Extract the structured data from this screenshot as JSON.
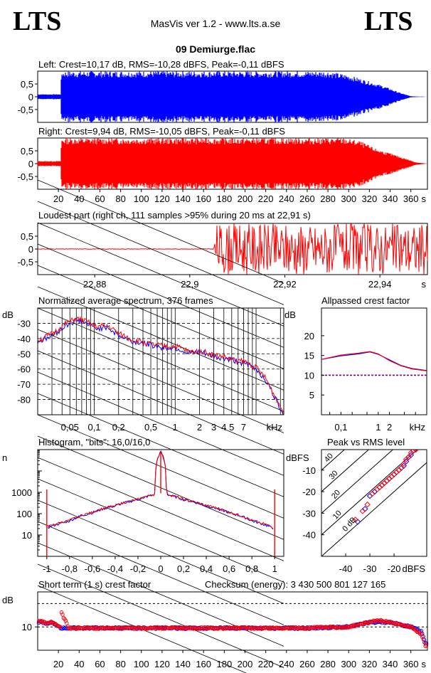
{
  "header": {
    "logo_left": "LTS",
    "logo_right": "LTS",
    "app_title": "MasVis ver 1.2 - www.lts.a.se",
    "file_title": "09 Demiurge.flac"
  },
  "colors": {
    "left_channel": "#0000ff",
    "right_channel": "#ff0000",
    "axis": "#000000"
  },
  "chart_data": [
    {
      "id": "left-waveform",
      "type": "area",
      "title": "Left: Crest=10,17 dB, RMS=-10,28 dBFS, Peak=-0,11 dBFS",
      "ytick_labels": [
        "0,5",
        "0",
        "-0,5"
      ],
      "yticks": [
        0.5,
        0,
        -0.5
      ],
      "xlim": [
        0,
        376
      ],
      "ylim": [
        -1,
        1
      ],
      "envelope": {
        "x": [
          0,
          22,
          23,
          280,
          300,
          320,
          335,
          350,
          360,
          376
        ],
        "peak": [
          0.1,
          0.1,
          1.0,
          1.0,
          0.85,
          0.6,
          0.4,
          0.15,
          0.02,
          0.0
        ]
      }
    },
    {
      "id": "right-waveform",
      "type": "area",
      "title": "Right: Crest=9,94 dB, RMS=-10,05 dBFS, Peak=-0,11 dBFS",
      "ytick_labels": [
        "0,5",
        "0",
        "-0,5"
      ],
      "yticks": [
        0.5,
        0,
        -0.5
      ],
      "xtick_labels": [
        "20",
        "40",
        "60",
        "80",
        "100",
        "120",
        "140",
        "160",
        "180",
        "200",
        "220",
        "240",
        "260",
        "280",
        "300",
        "320",
        "340",
        "360",
        "s"
      ],
      "xticks": [
        20,
        40,
        60,
        80,
        100,
        120,
        140,
        160,
        180,
        200,
        220,
        240,
        260,
        280,
        300,
        320,
        340,
        360
      ],
      "xlim": [
        0,
        376
      ],
      "ylim": [
        -1,
        1
      ],
      "envelope": {
        "x": [
          0,
          22,
          23,
          295,
          310,
          325,
          340,
          355,
          365,
          376
        ],
        "peak": [
          0.1,
          0.1,
          1.0,
          1.0,
          0.9,
          0.6,
          0.4,
          0.2,
          0.05,
          0.0
        ]
      }
    },
    {
      "id": "loudest-part",
      "type": "line",
      "title": "Loudest part (right ch, 111 samples >95% during 20 ms at 22,91 s)",
      "ytick_labels": [
        "0,5",
        "0",
        "-0,5"
      ],
      "yticks": [
        0.5,
        0,
        -0.5
      ],
      "xtick_labels": [
        "22,88",
        "22,9",
        "22,92",
        "22,94",
        "s"
      ],
      "xticks": [
        22.88,
        22.9,
        22.92,
        22.94
      ],
      "xlim": [
        22.868,
        22.95
      ],
      "ylim": [
        -1,
        1
      ],
      "series": [
        {
          "x": [
            22.868,
            22.905,
            22.9055,
            22.95
          ],
          "amplitude": [
            0.02,
            0.02,
            1.0,
            1.0
          ]
        }
      ]
    },
    {
      "id": "average-spectrum",
      "type": "line",
      "title": "Normalized average spectrum, 376 frames",
      "ylabel": "dB",
      "xlabel": "kHz",
      "ytick_labels": [
        "-30",
        "-40",
        "-50",
        "-60",
        "-70",
        "-80"
      ],
      "yticks": [
        -30,
        -40,
        -50,
        -60,
        -70,
        -80
      ],
      "xtick_labels": [
        "0,05",
        "0,1",
        "0,2",
        "0,5",
        "1",
        "2",
        "3",
        "4",
        "5",
        "7",
        "kHz"
      ],
      "xticks": [
        0.05,
        0.1,
        0.2,
        0.5,
        1,
        2,
        3,
        4,
        5,
        7
      ],
      "xlim": [
        0.02,
        22
      ],
      "ylim": [
        -90,
        -20
      ],
      "xscale": "log",
      "series": [
        {
          "color": "#0000ff",
          "x": [
            0.02,
            0.03,
            0.045,
            0.06,
            0.08,
            0.1,
            0.15,
            0.2,
            0.3,
            0.5,
            0.7,
            1,
            1.5,
            2,
            3,
            4,
            5,
            7,
            10,
            13,
            16,
            20,
            22
          ],
          "y": [
            -42,
            -38,
            -31,
            -28,
            -30,
            -33,
            -33,
            -38,
            -42,
            -44,
            -46,
            -46,
            -50,
            -49,
            -52,
            -53,
            -54,
            -56,
            -60,
            -67,
            -76,
            -86,
            -89
          ]
        },
        {
          "color": "#ff0000",
          "x": [
            0.02,
            0.03,
            0.045,
            0.06,
            0.08,
            0.1,
            0.15,
            0.2,
            0.3,
            0.5,
            0.7,
            1,
            1.5,
            2,
            3,
            4,
            5,
            7,
            10,
            13,
            16,
            20,
            22
          ],
          "y": [
            -41,
            -37,
            -30,
            -27,
            -29,
            -32,
            -32,
            -37,
            -41,
            -44,
            -45,
            -45,
            -49,
            -48,
            -51,
            -52,
            -54,
            -55,
            -59,
            -66,
            -75,
            -85,
            -88
          ]
        }
      ]
    },
    {
      "id": "allpassed-crest",
      "type": "line",
      "title": "Allpassed crest factor",
      "ylabel": "dB",
      "xlabel": "kHz",
      "ytick_labels": [
        "20",
        "15",
        "10",
        "5"
      ],
      "yticks": [
        20,
        15,
        10,
        5
      ],
      "xtick_labels": [
        "0,1",
        "1",
        "2",
        "kHz"
      ],
      "xticks": [
        0.1,
        1,
        2
      ],
      "xlim": [
        0.03,
        20
      ],
      "ylim": [
        0,
        27
      ],
      "xscale": "log",
      "reference_dB": 10,
      "series": [
        {
          "color": "#0000ff",
          "x": [
            0.03,
            0.1,
            0.3,
            0.6,
            1,
            2,
            4,
            8,
            20
          ],
          "y": [
            14.0,
            14.9,
            15.4,
            15.9,
            15.3,
            13.9,
            12.5,
            11.7,
            11.2
          ]
        },
        {
          "color": "#ff0000",
          "x": [
            0.03,
            0.1,
            0.3,
            0.6,
            1,
            2,
            4,
            8,
            20
          ],
          "y": [
            14.0,
            15.1,
            15.6,
            16.0,
            15.4,
            13.7,
            12.4,
            11.6,
            11.1
          ]
        }
      ]
    },
    {
      "id": "histogram",
      "type": "line",
      "title": "Histogram, \"bits\": 16,0/16,0",
      "ylabel": "n",
      "ytick_labels": [
        "1000",
        "100",
        "10"
      ],
      "yticks": [
        1000,
        100,
        10
      ],
      "xtick_labels": [
        "-1",
        "-0,8",
        "-0,6",
        "-0,4",
        "-0,2",
        "0",
        "0,2",
        "0,4",
        "0,6",
        "0,8",
        "1"
      ],
      "xticks": [
        -1,
        -0.8,
        -0.6,
        -0.4,
        -0.2,
        0,
        0.2,
        0.4,
        0.6,
        0.8,
        1
      ],
      "xlim": [
        -1.08,
        1.08
      ],
      "ylim": [
        1,
        100000
      ],
      "yscale": "log",
      "series": [
        {
          "color": "#0000ff",
          "x": [
            -1,
            -0.99,
            -0.8,
            -0.6,
            -0.4,
            -0.2,
            -0.05,
            0,
            0.05,
            0.2,
            0.4,
            0.6,
            0.8,
            0.99,
            1
          ],
          "y": [
            1000,
            22,
            45,
            110,
            230,
            450,
            800,
            80000,
            800,
            450,
            230,
            110,
            45,
            20,
            1000
          ]
        },
        {
          "color": "#ff0000",
          "x": [
            -1,
            -0.99,
            -0.8,
            -0.6,
            -0.4,
            -0.2,
            -0.05,
            0,
            0.05,
            0.2,
            0.4,
            0.6,
            0.8,
            0.99,
            1
          ],
          "y": [
            1000,
            24,
            48,
            115,
            240,
            460,
            820,
            80000,
            820,
            460,
            240,
            115,
            48,
            22,
            1000
          ]
        }
      ]
    },
    {
      "id": "peak-vs-rms",
      "type": "scatter",
      "title": "Peak vs RMS level",
      "xlabel": "dBFS",
      "ylabel": "dBFS",
      "ytick_labels": [
        "-10",
        "-20",
        "-30",
        "-40"
      ],
      "yticks": [
        -10,
        -20,
        -30,
        -40
      ],
      "xtick_labels": [
        "-40",
        "-30",
        "-20",
        "dBFS"
      ],
      "xticks": [
        -40,
        -30,
        -20
      ],
      "xlim": [
        -50,
        -6.5
      ],
      "ylim": [
        -50,
        -0.5
      ],
      "crest_lines": [
        {
          "label": "40",
          "offset": 40
        },
        {
          "label": "30",
          "offset": 30
        },
        {
          "label": "20",
          "offset": 20
        },
        {
          "label": "10",
          "offset": 10
        },
        {
          "label": "0 dB",
          "offset": 0
        }
      ],
      "series": [
        {
          "color": "#0000ff",
          "rms": [
            -35,
            -32,
            -30,
            -28,
            -26,
            -25,
            -24,
            -23,
            -22,
            -21,
            -20,
            -19,
            -18,
            -17,
            -16,
            -15,
            -14,
            -13,
            -12,
            -11
          ],
          "peak": [
            -34,
            -28,
            -22,
            -20,
            -18,
            -17,
            -16,
            -15,
            -14,
            -13,
            -12,
            -11,
            -10,
            -9,
            -8,
            -6,
            -4,
            -3,
            -1,
            -0.5
          ]
        },
        {
          "color": "#ff0000",
          "rms": [
            -36,
            -33,
            -31,
            -29,
            -27,
            -26,
            -25,
            -24,
            -23,
            -22,
            -21,
            -20,
            -19,
            -18,
            -17,
            -16,
            -15,
            -14,
            -13,
            -12,
            -11
          ],
          "peak": [
            -33,
            -29,
            -26,
            -21,
            -19,
            -18,
            -17,
            -16,
            -15,
            -14,
            -13,
            -12,
            -11,
            -10,
            -9,
            -7,
            -5,
            -4,
            -2,
            -1,
            -0.5
          ]
        }
      ]
    },
    {
      "id": "short-term-crest",
      "type": "scatter",
      "title": "Short term (1 s) crest factor",
      "ylabel": "dB",
      "ytick_labels": [
        "10"
      ],
      "yticks": [
        10
      ],
      "xtick_labels": [
        "20",
        "40",
        "60",
        "80",
        "100",
        "120",
        "140",
        "160",
        "180",
        "200",
        "220",
        "240",
        "260",
        "280",
        "300",
        "320",
        "340",
        "360",
        "s"
      ],
      "xticks": [
        20,
        40,
        60,
        80,
        100,
        120,
        140,
        160,
        180,
        200,
        220,
        240,
        260,
        280,
        300,
        320,
        340,
        360
      ],
      "xlim": [
        0,
        376
      ],
      "ylim": [
        0,
        25
      ],
      "reference_lines": [
        10,
        20
      ],
      "series": [
        {
          "color": "#0000ff",
          "x": [
            2,
            6,
            10,
            14,
            18,
            22,
            30,
            60,
            100,
            140,
            180,
            220,
            260,
            300,
            310,
            320,
            330,
            340,
            350,
            360,
            370,
            374
          ],
          "y": [
            12,
            12,
            11,
            12,
            11,
            9.5,
            9.5,
            9.5,
            9.5,
            9.5,
            9.5,
            9.5,
            9.5,
            10,
            11,
            12,
            12,
            12,
            11,
            10,
            8,
            3
          ]
        },
        {
          "color": "#ff0000",
          "x": [
            2,
            6,
            10,
            14,
            18,
            22,
            23,
            30,
            60,
            100,
            140,
            180,
            220,
            260,
            300,
            310,
            320,
            330,
            340,
            350,
            360,
            370,
            374
          ],
          "y": [
            12.5,
            12,
            11.5,
            12,
            11,
            10,
            16,
            9.5,
            9.5,
            9.5,
            9.5,
            9.5,
            9.5,
            9.5,
            10,
            11,
            12,
            13,
            12,
            11,
            10,
            7,
            2
          ]
        }
      ]
    }
  ],
  "footer": {
    "checksum": "Checksum (energy):  3 430 500 801 127 165"
  }
}
